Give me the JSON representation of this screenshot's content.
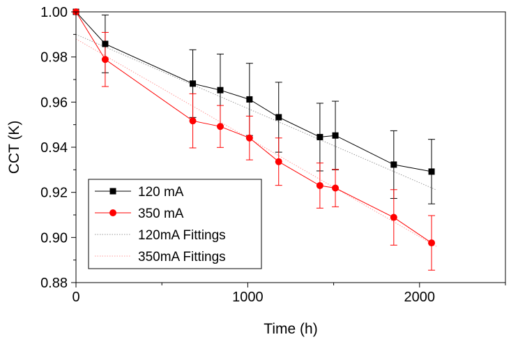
{
  "chart_data": {
    "type": "line",
    "title": "",
    "xlabel": "Time (h)",
    "ylabel": "CCT (K)",
    "xlim": [
      0,
      2500
    ],
    "ylim": [
      0.88,
      1.0
    ],
    "x_ticks": [
      0,
      1000,
      2000
    ],
    "x_tick_labels": [
      "0",
      "1000",
      "2000"
    ],
    "y_ticks": [
      0.88,
      0.9,
      0.92,
      0.94,
      0.96,
      0.98,
      1.0
    ],
    "y_tick_labels": [
      "0.88",
      "0.90",
      "0.92",
      "0.94",
      "0.96",
      "0.98",
      "1.00"
    ],
    "grid": false,
    "legend_position": "bottom-left",
    "series": [
      {
        "name": "120 mA",
        "color": "#000000",
        "marker": "square",
        "x": [
          0,
          170,
          680,
          840,
          1010,
          1180,
          1420,
          1510,
          1850,
          2070
        ],
        "y": [
          1.0,
          0.9858,
          0.9682,
          0.9653,
          0.9612,
          0.9533,
          0.9445,
          0.9452,
          0.9323,
          0.9292
        ],
        "err": [
          0,
          0.0128,
          0.015,
          0.016,
          0.016,
          0.0155,
          0.015,
          0.0152,
          0.015,
          0.0143
        ]
      },
      {
        "name": "350 mA",
        "color": "#ff0000",
        "marker": "circle",
        "x": [
          0,
          170,
          680,
          840,
          1010,
          1180,
          1420,
          1510,
          1850,
          2070
        ],
        "y": [
          1.0,
          0.9789,
          0.9517,
          0.9492,
          0.9441,
          0.9336,
          0.923,
          0.9219,
          0.9089,
          0.8976
        ],
        "err": [
          0,
          0.012,
          0.012,
          0.0093,
          0.0097,
          0.0105,
          0.01,
          0.0083,
          0.0123,
          0.0121
        ]
      },
      {
        "name": "120mA Fittings",
        "color": "#999999",
        "style": "dotted",
        "x": [
          0,
          2100
        ],
        "y": [
          0.99,
          0.921
        ]
      },
      {
        "name": "350mA Fittings",
        "color": "#ff9999",
        "style": "dotted",
        "x": [
          0,
          2100
        ],
        "y": [
          0.988,
          0.896
        ]
      }
    ]
  }
}
